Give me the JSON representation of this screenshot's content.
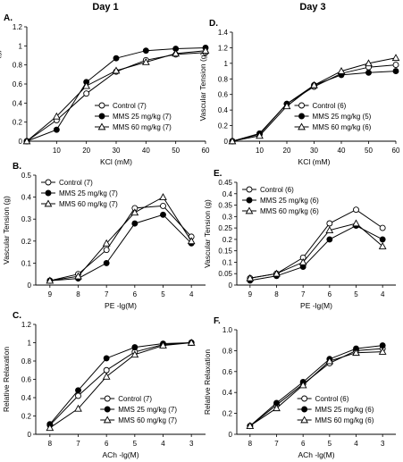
{
  "headers": {
    "left": "Day 1",
    "right": "Day 3"
  },
  "styles": {
    "Control": {
      "marker": "circle-open"
    },
    "MMS25": {
      "marker": "circle-filled"
    },
    "MMS60": {
      "marker": "triangle-open"
    }
  },
  "chart_data": [
    {
      "type": "line",
      "panel_label": "A.",
      "xlabel": "KCl (mM)",
      "ylabel": "Vascular Tension (g)",
      "x": [
        0,
        10,
        20,
        30,
        40,
        50,
        60
      ],
      "xticks": [
        "10",
        "20",
        "30",
        "40",
        "50",
        "60"
      ],
      "xtick_values": [
        10,
        20,
        30,
        40,
        50,
        60
      ],
      "xlim": [
        0,
        60
      ],
      "ylim": [
        0,
        1.2
      ],
      "yticks": [
        "0",
        "0.2",
        "0.4",
        "0.6",
        "0.8",
        "1",
        "1.2"
      ],
      "legend": "bottom-right",
      "series": [
        {
          "name": "Control (7)",
          "style": "Control",
          "values": [
            0,
            0.22,
            0.5,
            0.73,
            0.85,
            0.91,
            0.93
          ]
        },
        {
          "name": "MMS 25 mg/kg (7)",
          "style": "MMS25",
          "values": [
            0,
            0.12,
            0.62,
            0.87,
            0.95,
            0.97,
            0.98
          ]
        },
        {
          "name": "MMS 60 mg/kg (7)",
          "style": "MMS60",
          "values": [
            0,
            0.26,
            0.58,
            0.74,
            0.83,
            0.92,
            0.95
          ]
        }
      ]
    },
    {
      "type": "line",
      "panel_label": "D.",
      "xlabel": "KCl (mM)",
      "ylabel": "Vascular Tension (g)",
      "x": [
        0,
        10,
        20,
        30,
        40,
        50,
        60
      ],
      "xticks": [
        "10",
        "20",
        "30",
        "40",
        "50",
        "60"
      ],
      "xtick_values": [
        10,
        20,
        30,
        40,
        50,
        60
      ],
      "xlim": [
        0,
        60
      ],
      "ylim": [
        0,
        1.4
      ],
      "yticks": [
        "0",
        "0.2",
        "0.4",
        "0.6",
        "0.8",
        "1",
        "1.2",
        "1.4"
      ],
      "legend": "bottom-right",
      "series": [
        {
          "name": "Control  (6)",
          "style": "Control",
          "values": [
            0,
            0.1,
            0.48,
            0.7,
            0.87,
            0.95,
            0.98
          ]
        },
        {
          "name": "MMS 25 mg/kg  (5)",
          "style": "MMS25",
          "values": [
            0,
            0.09,
            0.48,
            0.72,
            0.85,
            0.88,
            0.9
          ]
        },
        {
          "name": "MMS 60 mg/kg  (6)",
          "style": "MMS60",
          "values": [
            0,
            0.07,
            0.45,
            0.72,
            0.9,
            1.0,
            1.07
          ]
        }
      ]
    },
    {
      "type": "line",
      "panel_label": "B.",
      "xlabel": "PE -lg(M)",
      "ylabel": "Vascular Tension (g)",
      "x": [
        9,
        8,
        7,
        6,
        5,
        4
      ],
      "xticks": [
        "9",
        "8",
        "7",
        "6",
        "5",
        "4"
      ],
      "xtick_values": [
        9,
        8,
        7,
        6,
        5,
        4
      ],
      "xlim": [
        9.5,
        3.5
      ],
      "ylim": [
        0,
        0.5
      ],
      "yticks": [
        "0",
        "0.1",
        "0.2",
        "0.3",
        "0.4",
        "0.5"
      ],
      "legend": "top-left",
      "series": [
        {
          "name": "Control (7)",
          "style": "Control",
          "values": [
            0.02,
            0.05,
            0.16,
            0.35,
            0.36,
            0.22
          ]
        },
        {
          "name": "MMS 25 mg/kg (7)",
          "style": "MMS25",
          "values": [
            0.02,
            0.03,
            0.1,
            0.28,
            0.32,
            0.19
          ]
        },
        {
          "name": "MMS 60 mg/kg (7)",
          "style": "MMS60",
          "values": [
            0.02,
            0.04,
            0.19,
            0.33,
            0.4,
            0.2
          ]
        }
      ]
    },
    {
      "type": "line",
      "panel_label": "E.",
      "xlabel": "PE -lg(M)",
      "ylabel": "Vascular Tension (g)",
      "x": [
        9,
        8,
        7,
        6,
        5,
        4
      ],
      "xticks": [
        "9",
        "8",
        "7",
        "6",
        "5",
        "4"
      ],
      "xtick_values": [
        9,
        8,
        7,
        6,
        5,
        4
      ],
      "xlim": [
        9.5,
        3.5
      ],
      "ylim": [
        0,
        0.45
      ],
      "yticks": [
        "0",
        "0.05",
        "0.1",
        "0.15",
        "0.2",
        "0.25",
        "0.3",
        "0.35",
        "0.4",
        "0.45"
      ],
      "legend": "top-left",
      "series": [
        {
          "name": "Control (6)",
          "style": "Control",
          "values": [
            0.03,
            0.05,
            0.12,
            0.27,
            0.33,
            0.25
          ]
        },
        {
          "name": "MMS 25 mg/kg (6)",
          "style": "MMS25",
          "values": [
            0.02,
            0.04,
            0.08,
            0.2,
            0.26,
            0.2
          ]
        },
        {
          "name": "MMS 60 mg/kg (6)",
          "style": "MMS60",
          "values": [
            0.03,
            0.05,
            0.1,
            0.24,
            0.27,
            0.17
          ]
        }
      ]
    },
    {
      "type": "line",
      "panel_label": "C.",
      "xlabel": "ACh -lg(M)",
      "ylabel": "Relative Relaxation",
      "x": [
        8,
        7,
        6,
        5,
        4,
        3
      ],
      "xticks": [
        "8",
        "7",
        "6",
        "5",
        "4",
        "3"
      ],
      "xtick_values": [
        8,
        7,
        6,
        5,
        4,
        3
      ],
      "xlim": [
        8.5,
        2.5
      ],
      "ylim": [
        0,
        1.2
      ],
      "yticks": [
        "0",
        "0.2",
        "0.4",
        "0.6",
        "0.8",
        "1",
        "1.2"
      ],
      "legend": "bottom-right",
      "series": [
        {
          "name": "Control (7)",
          "style": "Control",
          "values": [
            0.1,
            0.42,
            0.7,
            0.9,
            0.98,
            1.0
          ]
        },
        {
          "name": "MMS 25 mg/kg (7)",
          "style": "MMS25",
          "values": [
            0.11,
            0.48,
            0.83,
            0.95,
            0.99,
            1.0
          ]
        },
        {
          "name": "MMS 60 mg/kg (7)",
          "style": "MMS60",
          "values": [
            0.07,
            0.28,
            0.63,
            0.87,
            0.97,
            1.0
          ]
        }
      ]
    },
    {
      "type": "line",
      "panel_label": "F.",
      "xlabel": "ACh -lg(M)",
      "ylabel": "Relative Relaxation",
      "x": [
        8,
        7,
        6,
        5,
        4,
        3
      ],
      "xticks": [
        "8",
        "7",
        "6",
        "5",
        "4",
        "3"
      ],
      "xtick_values": [
        8,
        7,
        6,
        5,
        4,
        3
      ],
      "xlim": [
        8.5,
        2.5
      ],
      "ylim": [
        0,
        1.0
      ],
      "yticks": [
        "0",
        "0.2",
        "0.4",
        "0.6",
        "0.8",
        "1.0"
      ],
      "legend": "bottom-right",
      "series": [
        {
          "name": "Control (6)",
          "style": "Control",
          "values": [
            0.08,
            0.28,
            0.48,
            0.68,
            0.8,
            0.82
          ]
        },
        {
          "name": "MMS 25 mg/kg (6)",
          "style": "MMS25",
          "values": [
            0.08,
            0.3,
            0.5,
            0.72,
            0.82,
            0.85
          ]
        },
        {
          "name": "MMS 60 mg/kg (6)",
          "style": "MMS60",
          "values": [
            0.08,
            0.25,
            0.47,
            0.7,
            0.78,
            0.79
          ]
        }
      ]
    }
  ]
}
